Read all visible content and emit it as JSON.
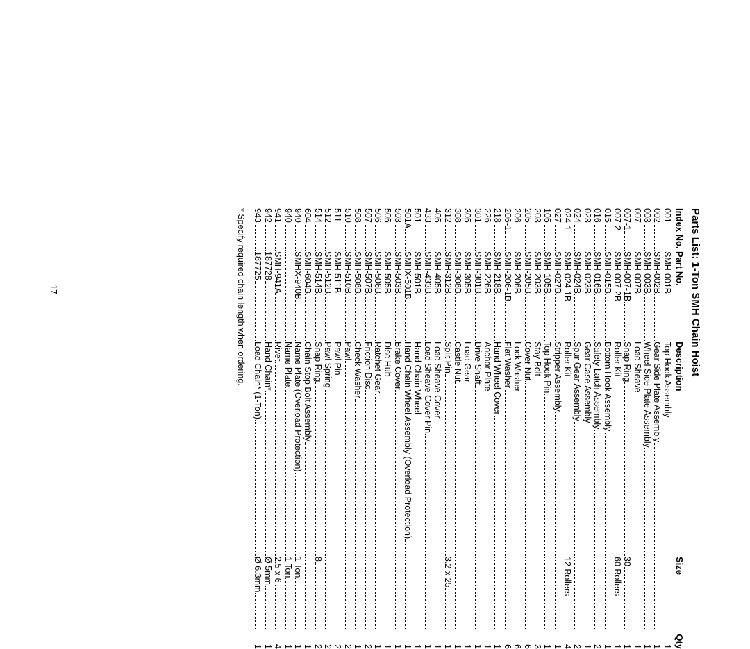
{
  "title": "Parts List: 1-Ton SMH Chain Hoist",
  "headers": {
    "index": "Index No.",
    "part": "Part No.",
    "description": "Description",
    "size": "Size",
    "qty": "Qty"
  },
  "rows": [
    {
      "index": "001",
      "part": "SMH-001B",
      "desc": "Top Hook Assembly",
      "size": "",
      "qty": "1"
    },
    {
      "index": "002",
      "part": "SMH-002B",
      "desc": "Gear Side Plate Assembly",
      "size": "",
      "qty": "1"
    },
    {
      "index": "003",
      "part": "SMH-003B",
      "desc": "Wheel Side Plate Assembly",
      "size": "",
      "qty": "1"
    },
    {
      "index": "007",
      "part": "SMH-007B",
      "desc": "Load Sheave",
      "size": "",
      "qty": "1"
    },
    {
      "index": "007-1",
      "part": "SMH-007-1B",
      "desc": "Snap Ring",
      "size": "30",
      "qty": "1"
    },
    {
      "index": "007-2",
      "part": "SMH-007-2B",
      "desc": "Roller Kit",
      "size": "60 Rollers",
      "qty": "1"
    },
    {
      "index": "015",
      "part": "SMH-015B",
      "desc": "Bottom Hook Assembly",
      "size": "",
      "qty": "1"
    },
    {
      "index": "016",
      "part": "SMH-016B",
      "desc": "Safety Latch Assembly",
      "size": "",
      "qty": "2"
    },
    {
      "index": "023",
      "part": "SMH-023B",
      "desc": "Gear Case Assembly",
      "size": "",
      "qty": "1"
    },
    {
      "index": "024",
      "part": "SMH-024B",
      "desc": "Spur Gear Assembly",
      "size": "",
      "qty": "2"
    },
    {
      "index": "024-1",
      "part": "SMH-024-1B",
      "desc": "Roller Kit",
      "size": "12 Rollers",
      "qty": "4"
    },
    {
      "index": "027",
      "part": "SMH-027B",
      "desc": "Stripper Assembly",
      "size": "",
      "qty": "1"
    },
    {
      "index": "105",
      "part": "SMH-105B",
      "desc": "Top Hook Pin",
      "size": "",
      "qty": "1"
    },
    {
      "index": "203",
      "part": "SMH-203B",
      "desc": "Stay Bolt",
      "size": "",
      "qty": "3"
    },
    {
      "index": "205",
      "part": "SMH-205B",
      "desc": "Cover Nut",
      "size": "",
      "qty": "6"
    },
    {
      "index": "206",
      "part": "SMH-206B",
      "desc": "Lock Washer",
      "size": "",
      "qty": "6"
    },
    {
      "index": "206-1",
      "part": "SMH-206-1B",
      "desc": "Flat Washer",
      "size": "",
      "qty": "6"
    },
    {
      "index": "218",
      "part": "SMH-218B",
      "desc": "Hand Wheel Cover",
      "size": "",
      "qty": "1"
    },
    {
      "index": "226",
      "part": "SMH-226B",
      "desc": "Anchor Plate",
      "size": "",
      "qty": "1"
    },
    {
      "index": "301",
      "part": "SMH-301B",
      "desc": "Drive Shaft",
      "size": "",
      "qty": "1"
    },
    {
      "index": "305",
      "part": "SMH-305B",
      "desc": "Load Gear",
      "size": "",
      "qty": "1"
    },
    {
      "index": "308",
      "part": "SMH-308B",
      "desc": "Castle Nut",
      "size": "",
      "qty": "1"
    },
    {
      "index": "312",
      "part": "SMH-312B",
      "desc": "Split Pin",
      "size": "3.2 x 25",
      "qty": "1"
    },
    {
      "index": "405",
      "part": "SMH-405B",
      "desc": "Load Sheave Cover",
      "size": "",
      "qty": "1"
    },
    {
      "index": "433",
      "part": "SMH-433B",
      "desc": "Load Sheave Cover Pin",
      "size": "",
      "qty": "1"
    },
    {
      "index": "501",
      "part": "SMH-501B",
      "desc": "Hand Chain Wheel",
      "size": "",
      "qty": "1"
    },
    {
      "index": "501A",
      "part": "SMHX-501B",
      "desc": "Hand Chain Wheel Assembly (Overload Protection)",
      "size": "",
      "qty": "1"
    },
    {
      "index": "503",
      "part": "SMH-503B",
      "desc": "Brake Cover",
      "size": "",
      "qty": "1"
    },
    {
      "index": "505",
      "part": "SMH-505B",
      "desc": "Disc Hub",
      "size": "",
      "qty": "1"
    },
    {
      "index": "506",
      "part": "SMH-506B",
      "desc": "Ratchet Gear",
      "size": "",
      "qty": "1"
    },
    {
      "index": "507",
      "part": "SMH-507B",
      "desc": "Friction Disc",
      "size": "",
      "qty": "2"
    },
    {
      "index": "508",
      "part": "SMH-508B",
      "desc": "Check Washer",
      "size": "",
      "qty": "1"
    },
    {
      "index": "510",
      "part": "SMH-510B",
      "desc": "Pawl",
      "size": "",
      "qty": "2"
    },
    {
      "index": "511",
      "part": "SMH-511B",
      "desc": "Pawl Pin",
      "size": "",
      "qty": "2"
    },
    {
      "index": "512",
      "part": "SMH-512B",
      "desc": "Pawl Spring",
      "size": "",
      "qty": "2"
    },
    {
      "index": "514",
      "part": "SMH-514B",
      "desc": "Snap Ring",
      "size": "8",
      "qty": "2"
    },
    {
      "index": "604",
      "part": "SMH-604B",
      "desc": "Chain Stop Bolt Assembly",
      "size": "",
      "qty": "1"
    },
    {
      "index": "940",
      "part": "SMHX-940B",
      "desc": "Name Plate (Overload Protection)",
      "size": "1 Ton",
      "qty": "1"
    },
    {
      "index": "940",
      "part": "",
      "desc": "Name Plate",
      "size": "1 Ton",
      "qty": "1"
    },
    {
      "index": "941",
      "part": "SMH-941A",
      "desc": "Rivet",
      "size": "2.5 x 6",
      "qty": "4"
    },
    {
      "index": "942",
      "part": "187728",
      "desc": "Hand Chain*",
      "size": "Ø 5mm",
      "qty": "1"
    },
    {
      "index": "943",
      "part": "187725",
      "desc": "Load Chain* (1-Ton)",
      "size": "Ø 6.3mm",
      "qty": "1"
    }
  ],
  "footnote": "* Specify required chain length when ordering.",
  "pageNumber": "17",
  "style": {
    "fontFamily": "Arial, Helvetica, sans-serif",
    "textColor": "#000000",
    "background": "#ffffff",
    "titleFontSize": 15,
    "bodyFontSize": 12.5,
    "rotationDeg": 90,
    "pageWidthPx": 1080,
    "pageHeightPx": 834,
    "dotLeaderStyle": "dotted",
    "columns": {
      "indexWidthPx": 62,
      "partWidthPx": 130,
      "descWidthPx": 310,
      "sizeWidthPx": 105,
      "qtyWidthPx": 28
    }
  }
}
